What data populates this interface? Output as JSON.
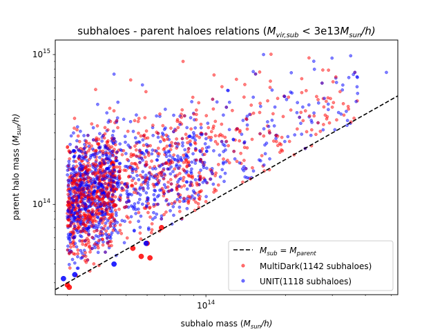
{
  "chart_data": {
    "type": "scatter",
    "title": {
      "main": "subhaloes - parent haloes relations",
      "cond_M": "M",
      "cond_sub": "vir,sub",
      "cond_mid": " < 3e13",
      "cond_M2": "M",
      "cond_sub2": "sun",
      "cond_end": "/h)"
    },
    "xlabel": {
      "main": "subhalo mass (",
      "M": "M",
      "sub": "sun",
      "end": "/h)"
    },
    "ylabel": {
      "main": "parent halo mass (",
      "M": "M",
      "sub": "sun",
      "end": "/h)"
    },
    "xscale": "log",
    "yscale": "log",
    "xlim": [
      27000000000000,
      530000000000000
    ],
    "ylim": [
      25000000000000,
      1250000000000000
    ],
    "x_ticks": [
      {
        "value": 100000000000000,
        "base": "10",
        "exp": "14"
      }
    ],
    "y_ticks": [
      {
        "value": 100000000000000,
        "base": "10",
        "exp": "14"
      },
      {
        "value": 1000000000000000,
        "base": "10",
        "exp": "15"
      }
    ],
    "reference_line": {
      "name_M": "M",
      "name_sub1": "sub",
      "name_eq": " = ",
      "name_M2": "M",
      "name_sub2": "parent",
      "style": "dashed",
      "color": "#000000",
      "relation": "y = x"
    },
    "legend": {
      "position": "lower-right"
    },
    "series": [
      {
        "name": "MultiDark(1142 subhaloes)",
        "color": "#ff0000",
        "count": 1142
      },
      {
        "name": "UNIT(1118 subhaloes)",
        "color": "#0000ff",
        "count": 1118
      }
    ],
    "highlighted_points": [
      {
        "series": "MultiDark(1142 subhaloes)",
        "x": 30000000000000,
        "y": 29000000000000
      },
      {
        "series": "MultiDark(1142 subhaloes)",
        "x": 30500000000000,
        "y": 28000000000000
      },
      {
        "series": "MultiDark(1142 subhaloes)",
        "x": 53000000000000,
        "y": 51000000000000
      },
      {
        "series": "MultiDark(1142 subhaloes)",
        "x": 57000000000000,
        "y": 45000000000000
      },
      {
        "series": "MultiDark(1142 subhaloes)",
        "x": 60000000000000,
        "y": 55000000000000
      },
      {
        "series": "MultiDark(1142 subhaloes)",
        "x": 61500000000000,
        "y": 44000000000000
      },
      {
        "series": "MultiDark(1142 subhaloes)",
        "x": 68000000000000,
        "y": 70000000000000
      },
      {
        "series": "UNIT(1118 subhaloes)",
        "x": 29000000000000,
        "y": 32000000000000
      },
      {
        "series": "UNIT(1118 subhaloes)",
        "x": 32000000000000,
        "y": 34000000000000
      },
      {
        "series": "UNIT(1118 subhaloes)",
        "x": 45000000000000,
        "y": 40000000000000
      },
      {
        "series": "UNIT(1118 subhaloes)",
        "x": 59500000000000,
        "y": 55000000000000
      }
    ],
    "notable_points": [
      {
        "series": "UNIT(1118 subhaloes)",
        "x": 165000000000000,
        "y": 1000000000000000
      },
      {
        "series": "UNIT(1118 subhaloes)",
        "x": 480000000000000,
        "y": 760000000000000
      },
      {
        "series": "MultiDark(1142 subhaloes)",
        "x": 245000000000000,
        "y": 950000000000000
      },
      {
        "series": "MultiDark(1142 subhaloes)",
        "x": 230000000000000,
        "y": 690000000000000
      },
      {
        "series": "MultiDark(1142 subhaloes)",
        "x": 265000000000000,
        "y": 500000000000000
      },
      {
        "series": "UNIT(1118 subhaloes)",
        "x": 280000000000000,
        "y": 510000000000000
      },
      {
        "series": "MultiDark(1142 subhaloes)",
        "x": 82000000000000,
        "y": 900000000000000
      },
      {
        "series": "MultiDark(1142 subhaloes)",
        "x": 115000000000000,
        "y": 610000000000000
      },
      {
        "series": "UNIT(1118 subhaloes)",
        "x": 45000000000000,
        "y": 740000000000000
      },
      {
        "series": "MultiDark(1142 subhaloes)",
        "x": 190000000000000,
        "y": 255000000000000
      }
    ]
  }
}
